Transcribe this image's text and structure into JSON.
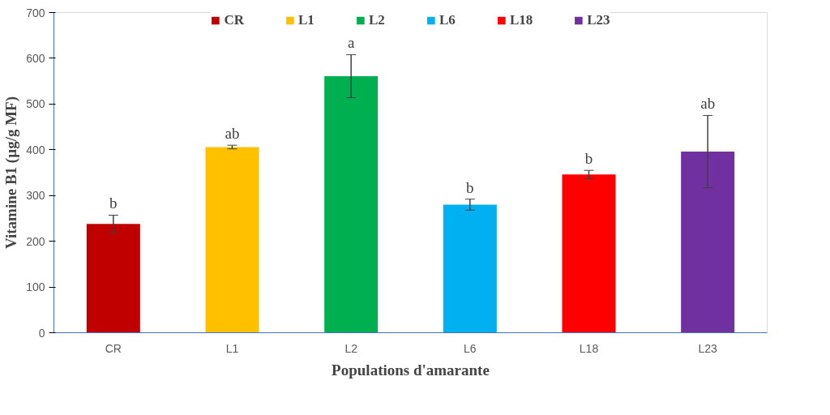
{
  "chart_data": {
    "type": "bar",
    "xlabel": "Populations d'amarante",
    "ylabel": "Vitamine B1 (µg/g MF)",
    "categories": [
      "CR",
      "L1",
      "L2",
      "L6",
      "L18",
      "L23"
    ],
    "series": [
      {
        "name": "CR",
        "color": "#c00000",
        "values": [
          238,
          null,
          null,
          null,
          null,
          null
        ],
        "errors": [
          19,
          null,
          null,
          null,
          null,
          null
        ]
      },
      {
        "name": "L1",
        "color": "#ffc000",
        "values": [
          null,
          406,
          null,
          null,
          null,
          null
        ],
        "errors": [
          null,
          4,
          null,
          null,
          null,
          null
        ]
      },
      {
        "name": "L2",
        "color": "#00b050",
        "values": [
          null,
          null,
          561,
          null,
          null,
          null
        ],
        "errors": [
          null,
          null,
          47,
          null,
          null,
          null
        ]
      },
      {
        "name": "L6",
        "color": "#00b0f0",
        "values": [
          null,
          null,
          null,
          280,
          null,
          null
        ],
        "errors": [
          null,
          null,
          null,
          12,
          null,
          null
        ]
      },
      {
        "name": "L18",
        "color": "#ff0000",
        "values": [
          null,
          null,
          null,
          null,
          346,
          null
        ],
        "errors": [
          null,
          null,
          null,
          null,
          9,
          null
        ]
      },
      {
        "name": "L23",
        "color": "#7030a0",
        "values": [
          null,
          null,
          null,
          null,
          null,
          396
        ],
        "errors": [
          null,
          null,
          null,
          null,
          null,
          79
        ]
      }
    ],
    "ylim": [
      0,
      700
    ],
    "yticks": [
      0,
      100,
      200,
      300,
      400,
      500,
      600,
      700
    ],
    "grid": false,
    "legend": "top",
    "annotations": [
      {
        "text": "b",
        "x": "CR",
        "y": 257
      },
      {
        "text": "ab",
        "x": "L1",
        "y": 410
      },
      {
        "text": "a",
        "x": "L2",
        "y": 608
      },
      {
        "text": "b",
        "x": "L6",
        "y": 292
      },
      {
        "text": "b",
        "x": "L18",
        "y": 355
      },
      {
        "text": "ab",
        "x": "L23",
        "y": 475
      }
    ]
  }
}
